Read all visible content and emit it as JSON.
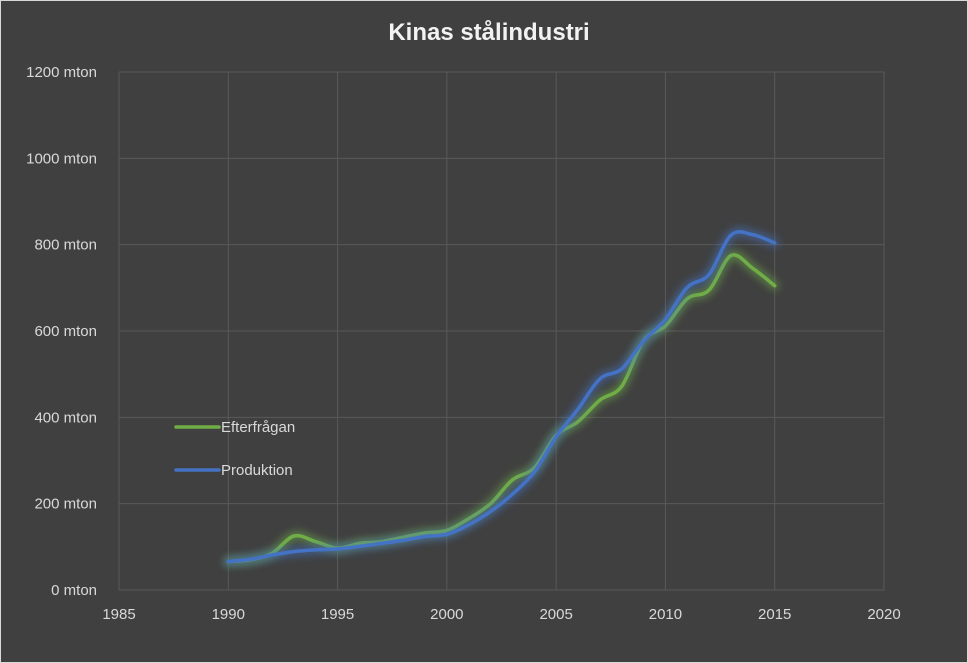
{
  "chart_data": {
    "type": "line",
    "title": "Kinas stålindustri",
    "xlabel": "",
    "ylabel": "",
    "xlim": [
      1985,
      2020
    ],
    "ylim": [
      0,
      1200
    ],
    "x_ticks": [
      "1985",
      "1990",
      "1995",
      "2000",
      "2005",
      "2010",
      "2015",
      "2020"
    ],
    "y_ticks": [
      "0 mton",
      "200 mton",
      "400 mton",
      "600 mton",
      "800 mton",
      "1000 mton",
      "1200 mton"
    ],
    "grid": true,
    "legend_position": "left-inside",
    "x": [
      1990,
      1991,
      1992,
      1993,
      1994,
      1995,
      1996,
      1997,
      1998,
      1999,
      2000,
      2001,
      2002,
      2003,
      2004,
      2005,
      2006,
      2007,
      2008,
      2009,
      2010,
      2011,
      2012,
      2013,
      2014,
      2015
    ],
    "series": [
      {
        "name": "Efterfrågan",
        "color": "#70ad47",
        "values": [
          66,
          70,
          85,
          125,
          112,
          97,
          108,
          112,
          122,
          132,
          138,
          165,
          200,
          255,
          283,
          358,
          390,
          440,
          472,
          578,
          612,
          675,
          695,
          775,
          745,
          705
        ]
      },
      {
        "name": "Produktion",
        "color": "#4472c4",
        "values": [
          66,
          71,
          81,
          89,
          93,
          95,
          101,
          108,
          115,
          124,
          129,
          151,
          182,
          222,
          273,
          355,
          419,
          489,
          512,
          577,
          627,
          701,
          731,
          822,
          823,
          804
        ]
      }
    ]
  }
}
